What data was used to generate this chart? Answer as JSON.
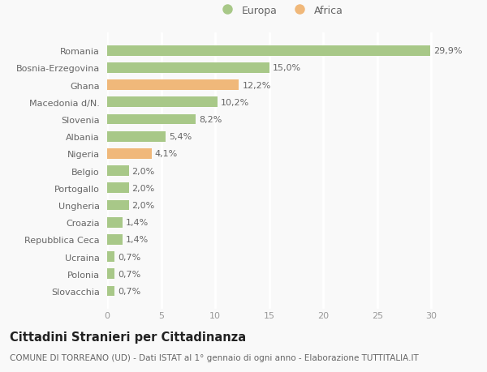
{
  "categories": [
    "Slovacchia",
    "Polonia",
    "Ucraina",
    "Repubblica Ceca",
    "Croazia",
    "Ungheria",
    "Portogallo",
    "Belgio",
    "Nigeria",
    "Albania",
    "Slovenia",
    "Macedonia d/N.",
    "Ghana",
    "Bosnia-Erzegovina",
    "Romania"
  ],
  "values": [
    0.7,
    0.7,
    0.7,
    1.4,
    1.4,
    2.0,
    2.0,
    2.0,
    4.1,
    5.4,
    8.2,
    10.2,
    12.2,
    15.0,
    29.9
  ],
  "colors": [
    "#a8c888",
    "#a8c888",
    "#a8c888",
    "#a8c888",
    "#a8c888",
    "#a8c888",
    "#a8c888",
    "#a8c888",
    "#f0b87a",
    "#a8c888",
    "#a8c888",
    "#a8c888",
    "#f0b87a",
    "#a8c888",
    "#a8c888"
  ],
  "labels": [
    "0,7%",
    "0,7%",
    "0,7%",
    "1,4%",
    "1,4%",
    "2,0%",
    "2,0%",
    "2,0%",
    "4,1%",
    "5,4%",
    "8,2%",
    "10,2%",
    "12,2%",
    "15,0%",
    "29,9%"
  ],
  "legend_europa_color": "#a8c888",
  "legend_africa_color": "#f0b87a",
  "xlim": [
    0,
    32
  ],
  "xticks": [
    0,
    5,
    10,
    15,
    20,
    25,
    30
  ],
  "title": "Cittadini Stranieri per Cittadinanza",
  "subtitle": "COMUNE DI TORREANO (UD) - Dati ISTAT al 1° gennaio di ogni anno - Elaborazione TUTTITALIA.IT",
  "background_color": "#f9f9f9",
  "grid_color": "#ffffff",
  "label_fontsize": 8,
  "tick_fontsize": 8,
  "title_fontsize": 10.5,
  "subtitle_fontsize": 7.5
}
